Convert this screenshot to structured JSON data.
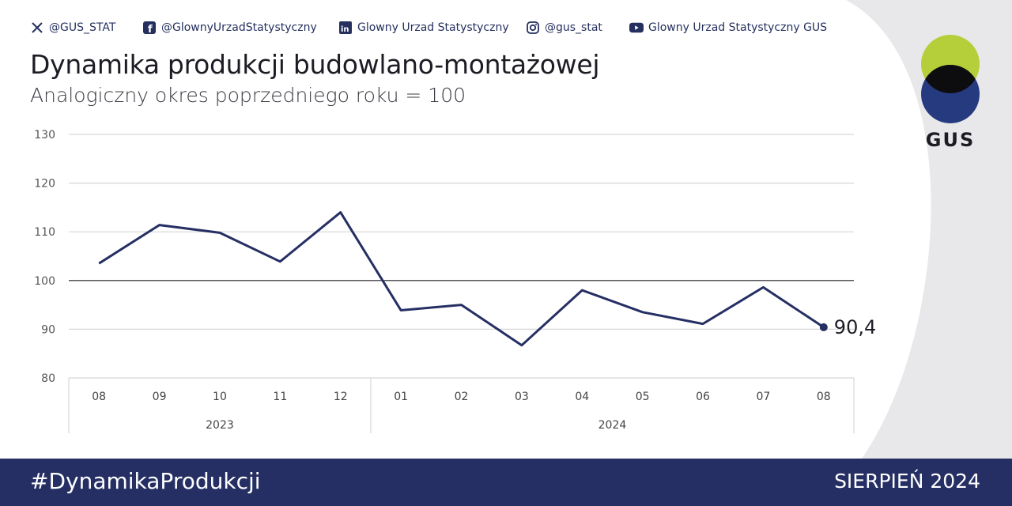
{
  "socials": [
    {
      "icon": "x-icon",
      "label": "@GUS_STAT"
    },
    {
      "icon": "facebook-icon",
      "label": "@GlownyUrzadStatystyczny"
    },
    {
      "icon": "linkedin-icon",
      "label": "Glowny Urzad Statystyczny"
    },
    {
      "icon": "instagram-icon",
      "label": "@gus_stat"
    },
    {
      "icon": "youtube-icon",
      "label": "Glowny Urzad Statystyczny GUS"
    }
  ],
  "header": {
    "title": "Dynamika produkcji budowlano-montażowej",
    "subtitle": "Analogiczny okres poprzedniego roku = 100"
  },
  "logo": {
    "text": "GUS"
  },
  "colors": {
    "line": "#262f63",
    "footer": "#262f63",
    "logo_green": "#b5cf3a",
    "logo_blue": "#263a80",
    "logo_overlap": "#0d0d10"
  },
  "chart_data": {
    "type": "line",
    "title": "Dynamika produkcji budowlano-montażowej",
    "subtitle": "Analogiczny okres poprzedniego roku = 100",
    "categories": [
      "08",
      "09",
      "10",
      "11",
      "12",
      "01",
      "02",
      "03",
      "04",
      "05",
      "06",
      "07",
      "08"
    ],
    "groups": [
      {
        "label": "2023",
        "count": 5
      },
      {
        "label": "2024",
        "count": 8
      }
    ],
    "series": [
      {
        "values": [
          103.5,
          111.4,
          109.8,
          103.9,
          114.0,
          93.9,
          95.0,
          86.7,
          98.0,
          93.5,
          91.1,
          98.6,
          90.4
        ]
      }
    ],
    "ylim": [
      80,
      130
    ],
    "yticks": [
      80,
      90,
      100,
      110,
      120,
      130
    ],
    "reference_line": 100,
    "grid": true,
    "end_label": "90,4"
  },
  "footer": {
    "hashtag": "#DynamikaProdukcji",
    "date": "SIERPIEŃ 2024"
  }
}
